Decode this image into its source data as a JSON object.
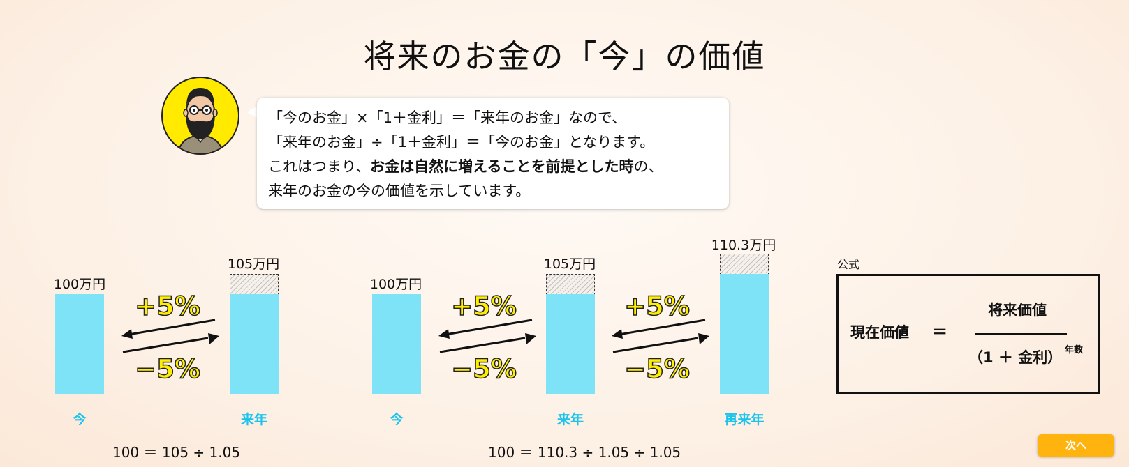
{
  "title": "将来のお金の「今」の価値",
  "bubble": {
    "line1": "「今のお金」×「1＋金利」＝「来年のお金」なので、",
    "line2": "「来年のお金」÷「1＋金利」＝「今のお金」となります。",
    "line3_pre": "これはつまり、",
    "line3_bold": "お金は自然に増えることを前提とした時",
    "line3_post": "の、",
    "line4": "来年のお金の今の価値を示しています。"
  },
  "left_diagram": {
    "bars": [
      {
        "label": "今",
        "value_text": "100万円",
        "value": 100
      },
      {
        "label": "来年",
        "value_text": "105万円",
        "value": 105
      }
    ],
    "up": "+5%",
    "down": "−5%",
    "equation": "100 ＝ 105 ÷ 1.05"
  },
  "right_diagram": {
    "bars": [
      {
        "label": "今",
        "value_text": "100万円",
        "value": 100
      },
      {
        "label": "来年",
        "value_text": "105万円",
        "value": 105
      },
      {
        "label": "再来年",
        "value_text": "110.3万円",
        "value": 110.3
      }
    ],
    "up": "+5%",
    "down": "−5%",
    "equation": "100 ＝ 110.3 ÷ 1.05 ÷ 1.05"
  },
  "formula": {
    "label": "公式",
    "lhs": "現在価値",
    "equals": "＝",
    "numerator": "将来価値",
    "denominator": "（1 ＋ 金利）",
    "exponent": "年数"
  },
  "next_button": "次へ",
  "colors": {
    "bar": "#7ee3f6",
    "axis_label": "#1cc3ec",
    "percent": "#ffee00",
    "button": "#ffb30f"
  }
}
